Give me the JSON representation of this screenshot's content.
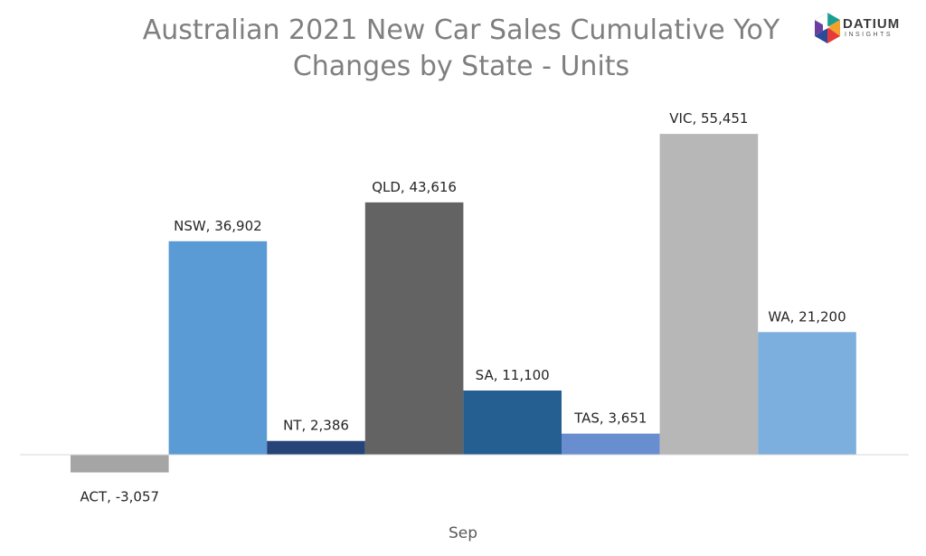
{
  "header": {
    "title_line1": "Australian 2021 New Car Sales Cumulative YoY",
    "title_line2": "Changes by State - Units"
  },
  "logo": {
    "name": "DATIUM",
    "sub": "INSIGHTS",
    "colors": [
      "#1a9e94",
      "#f4a12b",
      "#e63a3a",
      "#2c4a9a",
      "#6b3fa0"
    ]
  },
  "chart_data": {
    "type": "bar",
    "categories": [
      "Sep"
    ],
    "series": [
      {
        "name": "ACT",
        "label": "ACT, -3,057",
        "value": -3057,
        "color": "#a5a5a5"
      },
      {
        "name": "NSW",
        "label": "NSW, 36,902",
        "value": 36902,
        "color": "#5b9bd5"
      },
      {
        "name": "NT",
        "label": "NT, 2,386",
        "value": 2386,
        "color": "#264478"
      },
      {
        "name": "QLD",
        "label": "QLD, 43,616",
        "value": 43616,
        "color": "#636363"
      },
      {
        "name": "SA",
        "label": "SA, 11,100",
        "value": 11100,
        "color": "#255e91"
      },
      {
        "name": "TAS",
        "label": "TAS, 3,651",
        "value": 3651,
        "color": "#698ed0"
      },
      {
        "name": "VIC",
        "label": "VIC, 55,451",
        "value": 55451,
        "color": "#b7b7b7"
      },
      {
        "name": "WA",
        "label": "WA, 21,200",
        "value": 21200,
        "color": "#7cafdd"
      }
    ],
    "ylim": [
      -10000,
      60000
    ],
    "grid": false,
    "legend": "none"
  }
}
